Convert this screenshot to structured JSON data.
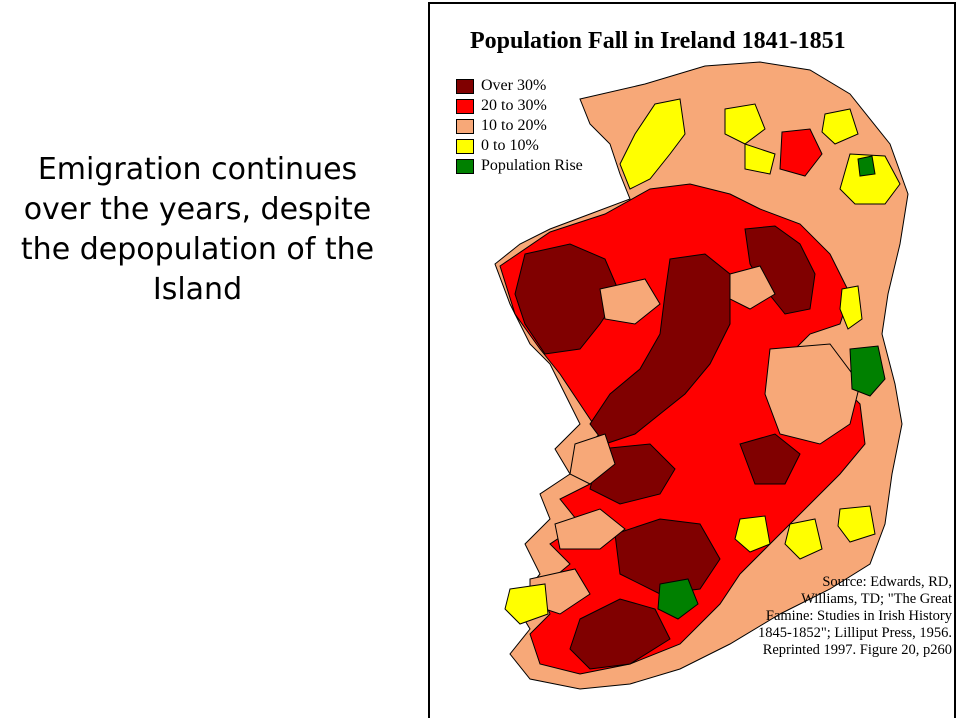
{
  "slide": {
    "text": "Emigration continues over the years, despite the depopulation of the Island"
  },
  "map": {
    "title": "Population Fall in Ireland 1841-1851",
    "legend": [
      {
        "label": "Over 30%",
        "color": "#800000"
      },
      {
        "label": "20 to 30%",
        "color": "#ff0000"
      },
      {
        "label": "10 to 20%",
        "color": "#f7a878"
      },
      {
        "label": "0 to 10%",
        "color": "#ffff00"
      },
      {
        "label": "Population Rise",
        "color": "#008000"
      }
    ],
    "source_lines": [
      "Source: Edwards, RD,",
      "Williams, TD; \"The Great",
      "Famine: Studies in Irish History",
      "1845-1852\"; Lilliput Press, 1956.",
      "Reprinted 1997. Figure 20, p260"
    ]
  }
}
